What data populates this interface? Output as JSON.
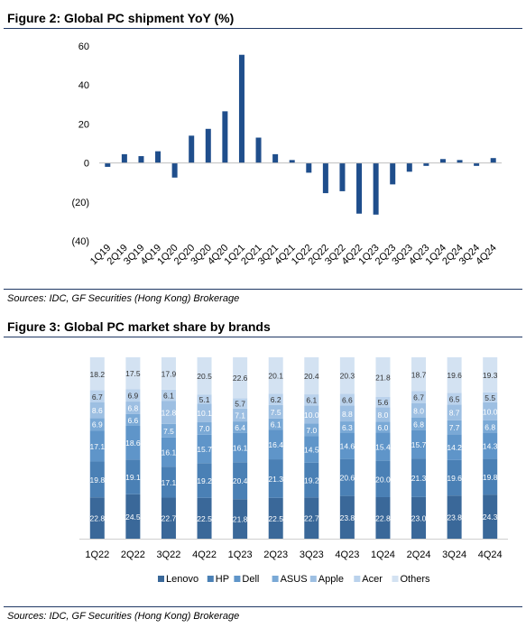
{
  "figure2": {
    "title": "Figure 2: Global PC shipment YoY (%)",
    "source": "Sources: IDC, GF Securities (Hong Kong) Brokerage"
  },
  "figure3": {
    "title": "Figure 3: Global PC market share by brands",
    "source": "Sources: IDC, GF Securities (Hong Kong) Brokerage"
  },
  "chart_data": [
    {
      "type": "bar",
      "title": "Figure 2: Global PC shipment YoY (%)",
      "categories": [
        "1Q19",
        "2Q19",
        "3Q19",
        "4Q19",
        "1Q20",
        "2Q20",
        "3Q20",
        "4Q20",
        "1Q21",
        "2Q21",
        "3Q21",
        "4Q21",
        "1Q22",
        "2Q22",
        "3Q22",
        "4Q22",
        "1Q23",
        "2Q23",
        "3Q23",
        "4Q23",
        "1Q24",
        "2Q24",
        "3Q24",
        "4Q24"
      ],
      "values": [
        -2.0,
        4.5,
        3.5,
        6.0,
        -7.5,
        14.0,
        17.5,
        26.5,
        55.5,
        13.0,
        4.5,
        1.5,
        -5.0,
        -15.5,
        -14.5,
        -26.0,
        -26.5,
        -11.0,
        -4.5,
        -1.5,
        2.0,
        1.5,
        -1.5,
        2.5
      ],
      "ylim": [
        -40,
        60
      ],
      "yticks": [
        60,
        40,
        20,
        0,
        -20,
        -40
      ],
      "ytick_labels": [
        "60",
        "40",
        "20",
        "0",
        "(20)",
        "(40)"
      ],
      "color": "#1f4e8c",
      "grid": false
    },
    {
      "type": "bar",
      "stacked": true,
      "title": "Figure 3: Global PC market share by brands",
      "categories": [
        "1Q22",
        "2Q22",
        "3Q22",
        "4Q22",
        "1Q23",
        "2Q23",
        "3Q23",
        "4Q23",
        "1Q24",
        "2Q24",
        "3Q24",
        "4Q24"
      ],
      "series": [
        {
          "name": "Lenovo",
          "color": "#3a6899",
          "values": [
            22.8,
            24.5,
            22.7,
            22.5,
            21.8,
            22.5,
            22.7,
            23.8,
            22.8,
            23.0,
            23.8,
            24.3
          ]
        },
        {
          "name": "HP",
          "color": "#4a80b5",
          "values": [
            19.8,
            19.1,
            17.1,
            19.2,
            20.4,
            21.3,
            19.2,
            20.6,
            20.0,
            21.3,
            19.6,
            19.8
          ]
        },
        {
          "name": "Dell",
          "color": "#5f95c9",
          "values": [
            17.1,
            18.6,
            16.1,
            15.7,
            16.1,
            16.4,
            14.5,
            14.6,
            15.4,
            15.7,
            14.2,
            14.3
          ]
        },
        {
          "name": "ASUS",
          "color": "#7aa9d6",
          "values": [
            6.9,
            6.6,
            7.5,
            7.0,
            6.4,
            6.1,
            7.0,
            6.3,
            6.0,
            6.8,
            7.7,
            6.8
          ]
        },
        {
          "name": "Apple",
          "color": "#9dbfe2",
          "values": [
            8.6,
            6.8,
            12.8,
            10.1,
            7.1,
            7.5,
            10.0,
            8.8,
            8.0,
            8.0,
            8.7,
            10.0
          ]
        },
        {
          "name": "Acer",
          "color": "#bad2ec",
          "values": [
            6.7,
            6.9,
            6.1,
            5.1,
            5.7,
            6.2,
            6.1,
            6.6,
            5.6,
            6.7,
            6.5,
            5.5
          ]
        },
        {
          "name": "Others",
          "color": "#d3e2f2",
          "values": [
            18.2,
            17.5,
            17.9,
            20.5,
            22.6,
            20.1,
            20.4,
            20.3,
            21.8,
            18.7,
            19.6,
            19.3
          ]
        }
      ],
      "legend": "bottom",
      "grid": false
    }
  ]
}
